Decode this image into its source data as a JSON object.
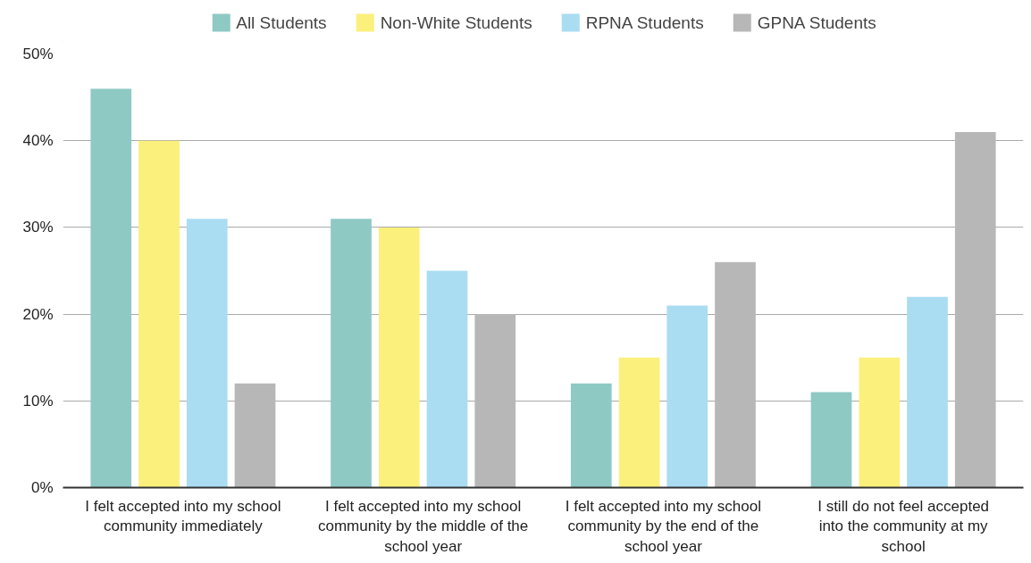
{
  "chart_data": {
    "type": "bar",
    "categories": [
      "I felt accepted into my school community immediately",
      "I felt accepted into my school community by the middle of the school year",
      "I felt accepted into my school community by the end of the school year",
      "I still do not feel accepted into the community at my school"
    ],
    "series": [
      {
        "name": "All Students",
        "color": "#8ec9c4",
        "values": [
          46,
          31,
          12,
          11
        ]
      },
      {
        "name": "Non-White Students",
        "color": "#fbf07c",
        "values": [
          40,
          30,
          15,
          15
        ]
      },
      {
        "name": "RPNA Students",
        "color": "#aadcf2",
        "values": [
          31,
          25,
          21,
          22
        ]
      },
      {
        "name": "GPNA Students",
        "color": "#b7b7b7",
        "values": [
          12,
          20,
          26,
          41
        ]
      }
    ],
    "ylim": [
      0,
      50
    ],
    "yticks": [
      {
        "value": 0,
        "label": "0%"
      },
      {
        "value": 10,
        "label": "10%"
      },
      {
        "value": 20,
        "label": "20%"
      },
      {
        "value": 30,
        "label": "30%"
      },
      {
        "value": 40,
        "label": "40%"
      },
      {
        "value": 50,
        "label": "50%"
      }
    ],
    "grid": "y",
    "legend": "top"
  }
}
